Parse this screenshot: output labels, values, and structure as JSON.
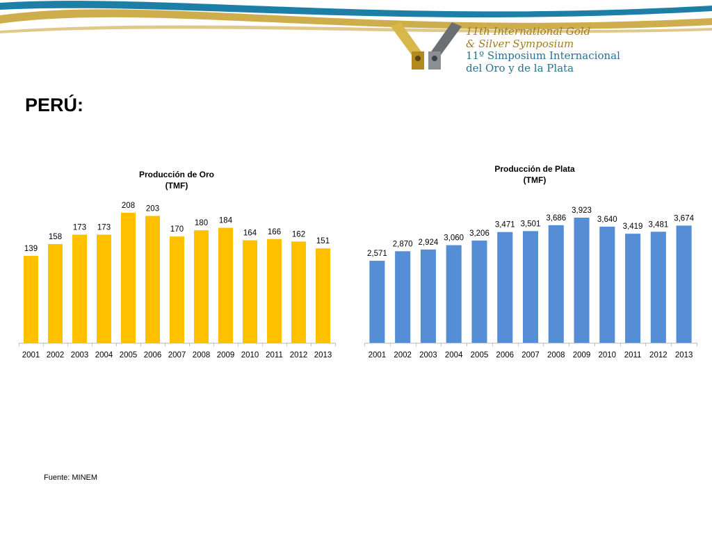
{
  "header": {
    "logo": {
      "line1": "11th International Gold",
      "line2": "& Silver Symposium",
      "line3": "11º Simposium Internacional",
      "line4": "del Oro y de la Plata"
    },
    "brand_colors": {
      "teal": "#1d7fa6",
      "gold": "#c9a43a"
    }
  },
  "page_title": "PERÚ:",
  "source_note": "Fuente: MINEM",
  "chart_data": [
    {
      "type": "bar",
      "title": "Producción de Oro",
      "subtitle": "(TMF)",
      "categories": [
        "2001",
        "2002",
        "2003",
        "2004",
        "2005",
        "2006",
        "2007",
        "2008",
        "2009",
        "2010",
        "2011",
        "2012",
        "2013"
      ],
      "values": [
        139,
        158,
        173,
        173,
        208,
        203,
        170,
        180,
        184,
        164,
        166,
        162,
        151
      ],
      "value_labels": [
        "139",
        "158",
        "173",
        "173",
        "208",
        "203",
        "170",
        "180",
        "184",
        "164",
        "166",
        "162",
        "151"
      ],
      "ylim": [
        0,
        208
      ],
      "color": "#FFC000",
      "grid": false,
      "legend": "none"
    },
    {
      "type": "bar",
      "title": "Producción de Plata",
      "subtitle": "(TMF)",
      "categories": [
        "2001",
        "2002",
        "2003",
        "2004",
        "2005",
        "2006",
        "2007",
        "2008",
        "2009",
        "2010",
        "2011",
        "2012",
        "2013"
      ],
      "values": [
        2571,
        2870,
        2924,
        3060,
        3206,
        3471,
        3501,
        3686,
        3923,
        3640,
        3419,
        3481,
        3674
      ],
      "value_labels": [
        "2,571",
        "2,870",
        "2,924",
        "3,060",
        "3,206",
        "3,471",
        "3,501",
        "3,686",
        "3,923",
        "3,640",
        "3,419",
        "3,481",
        "3,674"
      ],
      "ylim": [
        0,
        3923
      ],
      "color": "#558ED5",
      "grid": false,
      "legend": "none"
    }
  ]
}
